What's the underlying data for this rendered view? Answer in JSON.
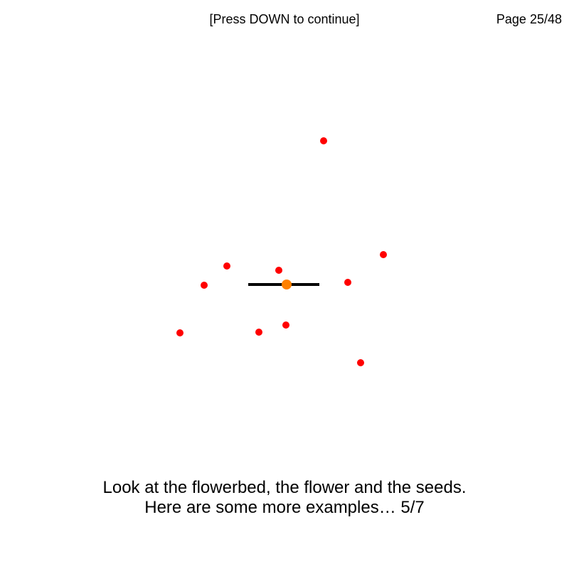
{
  "header": {
    "prompt": "[Press DOWN to continue]",
    "page_counter": "Page 25/48"
  },
  "caption": {
    "line1": "Look at the flowerbed, the flower and the seeds.",
    "line2": "Here are some more examples… 5/7"
  },
  "colors": {
    "seed": "#ff0000",
    "flower": "#ff8000",
    "flowerbed": "#000000"
  }
}
